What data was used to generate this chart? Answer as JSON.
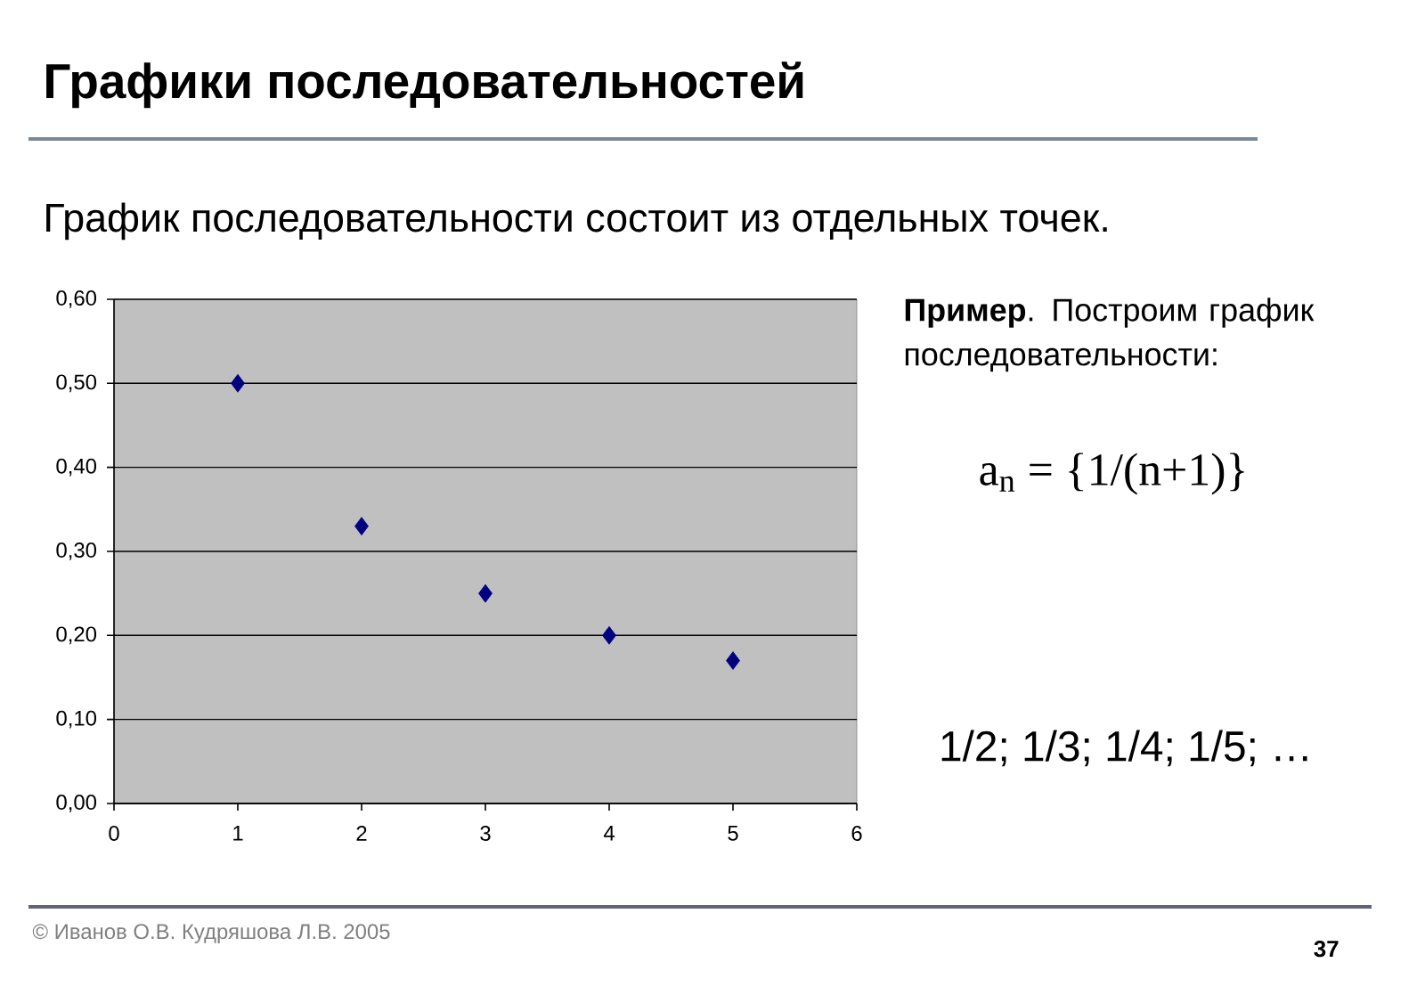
{
  "chart_data": {
    "type": "scatter",
    "title": "Графики последовательностей",
    "subtitle": "График последовательности состоит из отдельных точек.",
    "x": [
      1,
      2,
      3,
      4,
      5
    ],
    "values": [
      0.5,
      0.33,
      0.25,
      0.2,
      0.17
    ],
    "color": "#000080",
    "marker": "diamond",
    "xlim": [
      0,
      6
    ],
    "xticks": [
      0,
      1,
      2,
      3,
      4,
      5,
      6
    ],
    "ylim": [
      0,
      0.6
    ],
    "yticks": [
      {
        "value": 0,
        "label": "0,00"
      },
      {
        "value": 0.1,
        "label": "0,10"
      },
      {
        "value": 0.2,
        "label": "0,20"
      },
      {
        "value": 0.3,
        "label": "0,30"
      },
      {
        "value": 0.4,
        "label": "0,40"
      },
      {
        "value": 0.5,
        "label": "0,50"
      },
      {
        "value": 0.6,
        "label": "0,60"
      }
    ],
    "grid": "y",
    "annotations": [
      "**Пример**. Построим график последовательности:",
      "a$_{n}$ = {1/(n+1)}",
      "1/2; 1/3; 1/4; 1/5; …",
      "© Иванов О.В. Кудряшова Л.В. 2005",
      "37"
    ]
  }
}
